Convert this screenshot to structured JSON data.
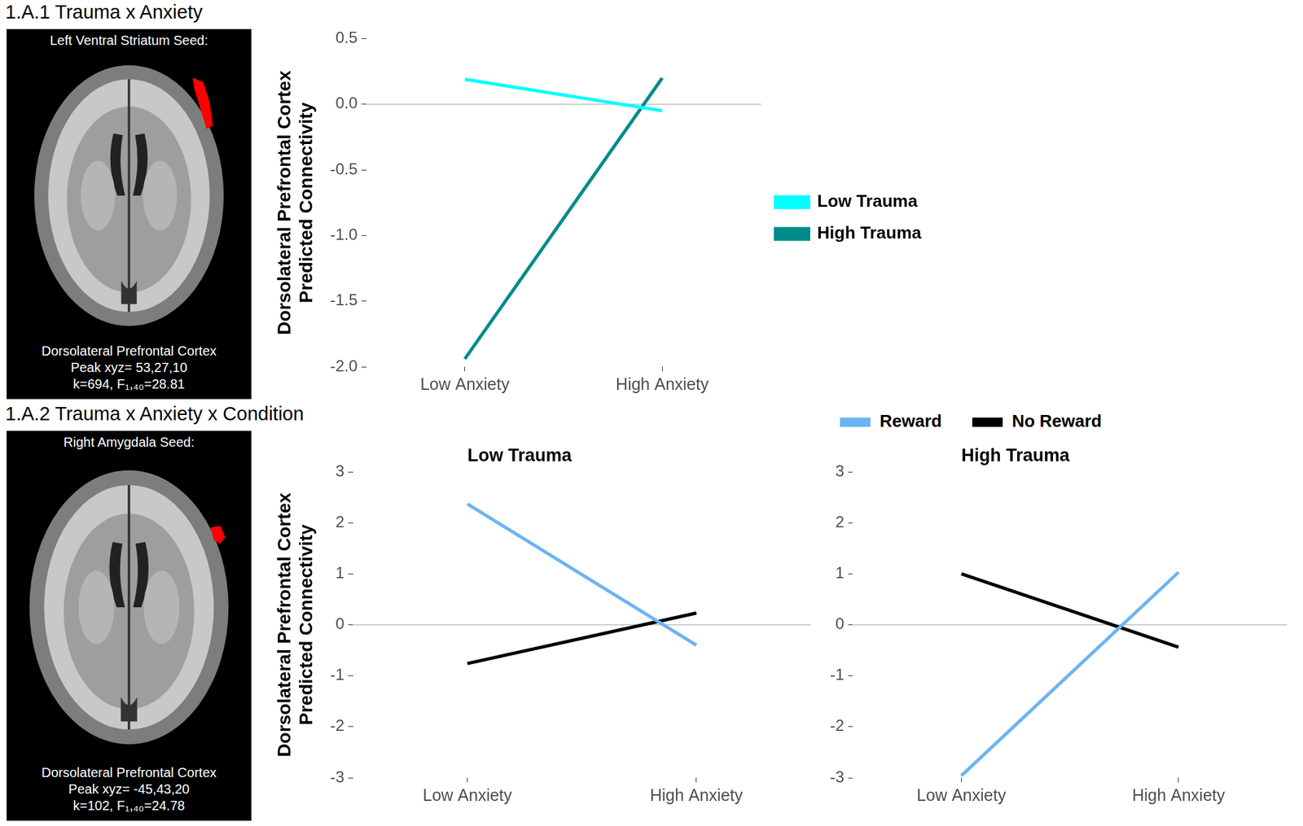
{
  "panels": [
    {
      "label": "1.A.1 Trauma x Anxiety",
      "seed": "Left Ventral Striatum Seed:",
      "region": "Dorsolateral Prefrontal Cortex",
      "peak": "Peak xyz= 53,27,10",
      "stats": "k=694, F₁,₄₀=28.81"
    },
    {
      "label": "1.A.2 Trauma x Anxiety x Condition",
      "seed": "Right Amygdala Seed:",
      "region": "Dorsolateral Prefrontal Cortex",
      "peak": "Peak xyz= -45,43,20",
      "stats": "k=102, F₁,₄₀=24.78"
    }
  ],
  "chart_data": [
    {
      "type": "line",
      "y_label": [
        "Dorsolateral Prefrontal Cortex",
        "Predicted Connectivity"
      ],
      "categories": [
        "Low Anxiety",
        "High Anxiety"
      ],
      "series": [
        {
          "name": "Low Trauma",
          "color": "#00FFFF",
          "values": [
            0.19,
            -0.05
          ]
        },
        {
          "name": "High Trauma",
          "color": "#008B8B",
          "values": [
            -1.94,
            0.2
          ]
        }
      ],
      "ylim": [
        -2,
        0.5
      ],
      "yticks": [
        {
          "value": -2,
          "label": "-2.0"
        },
        -1.5,
        {
          "value": -1,
          "label": "-1.0"
        },
        -0.5,
        {
          "value": 0,
          "label": "0.0"
        },
        0.5
      ],
      "reference_line": 0,
      "grid": false,
      "legend": "right"
    },
    {
      "type": "line",
      "title": "Low Trauma",
      "y_label": [
        "Dorsolateral Prefrontal Cortex",
        "Predicted Connectivity"
      ],
      "categories": [
        "Low Anxiety",
        "High Anxiety"
      ],
      "series": [
        {
          "name": "Reward",
          "color": "#6CB4F0",
          "values": [
            2.37,
            -0.4
          ]
        },
        {
          "name": "No Reward",
          "color": "#000000",
          "values": [
            -0.76,
            0.23
          ]
        }
      ],
      "ylim": [
        -3,
        3
      ],
      "yticks": [
        -3,
        -2,
        -1,
        0,
        1,
        2,
        3
      ],
      "reference_line": 0,
      "grid": false
    },
    {
      "type": "line",
      "title": "High Trauma",
      "categories": [
        "Low Anxiety",
        "High Anxiety"
      ],
      "series": [
        {
          "name": "Reward",
          "color": "#6CB4F0",
          "values": [
            -2.96,
            1.03
          ]
        },
        {
          "name": "No Reward",
          "color": "#000000",
          "values": [
            1.0,
            -0.44
          ]
        }
      ],
      "ylim": [
        -3,
        3
      ],
      "yticks": [
        -3,
        -2,
        -1,
        0,
        1,
        2,
        3
      ],
      "reference_line": 0,
      "grid": false,
      "legend": "top"
    }
  ]
}
